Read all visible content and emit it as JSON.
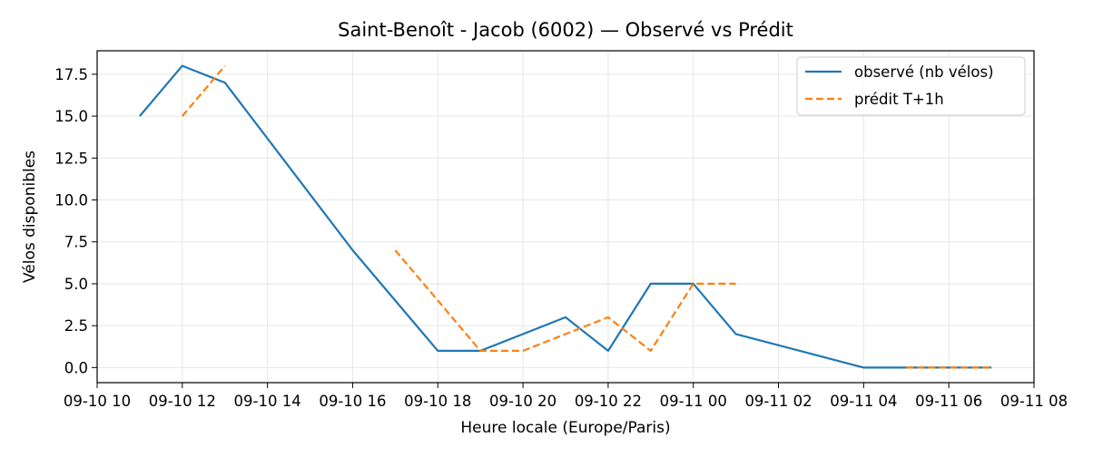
{
  "chart_data": {
    "type": "line",
    "title": "Saint-Benoît - Jacob (6002) — Observé vs Prédit",
    "xlabel": "Heure locale (Europe/Paris)",
    "ylabel": "Vélos disponibles",
    "xlim": [
      "09-10 10:00",
      "09-11 08:00"
    ],
    "ylim": [
      -0.9,
      18.9
    ],
    "grid": true,
    "legend_position": "top-right",
    "x_ticks": [
      "09-10 10",
      "09-10 12",
      "09-10 14",
      "09-10 16",
      "09-10 18",
      "09-10 20",
      "09-10 22",
      "09-11 00",
      "09-11 02",
      "09-11 04",
      "09-11 06",
      "09-11 08"
    ],
    "y_ticks": [
      "0.0",
      "2.5",
      "5.0",
      "7.5",
      "10.0",
      "12.5",
      "15.0",
      "17.5"
    ],
    "series": [
      {
        "name": "observé (nb vélos)",
        "color": "#1f77b4",
        "style": "solid",
        "points": [
          [
            "09-10 11:00",
            15
          ],
          [
            "09-10 12:00",
            18
          ],
          [
            "09-10 13:00",
            17
          ],
          [
            "09-10 16:00",
            7
          ],
          [
            "09-10 18:00",
            1
          ],
          [
            "09-10 19:00",
            1
          ],
          [
            "09-10 21:00",
            3
          ],
          [
            "09-10 22:00",
            1
          ],
          [
            "09-10 23:00",
            5
          ],
          [
            "09-11 00:00",
            5
          ],
          [
            "09-11 01:00",
            2
          ],
          [
            "09-11 04:00",
            0
          ],
          [
            "09-11 07:00",
            0
          ]
        ]
      },
      {
        "name": "prédit T+1h",
        "color": "#ff7f0e",
        "style": "dashed",
        "segments": [
          [
            [
              "09-10 12:00",
              15
            ],
            [
              "09-10 13:00",
              18
            ]
          ],
          [
            [
              "09-10 17:00",
              7
            ],
            [
              "09-10 19:00",
              1
            ],
            [
              "09-10 20:00",
              1
            ],
            [
              "09-10 22:00",
              3
            ],
            [
              "09-10 23:00",
              1
            ],
            [
              "09-11 00:00",
              5
            ],
            [
              "09-11 01:00",
              5
            ]
          ],
          [
            [
              "09-11 05:00",
              0
            ],
            [
              "09-11 07:00",
              0
            ]
          ]
        ]
      }
    ]
  }
}
